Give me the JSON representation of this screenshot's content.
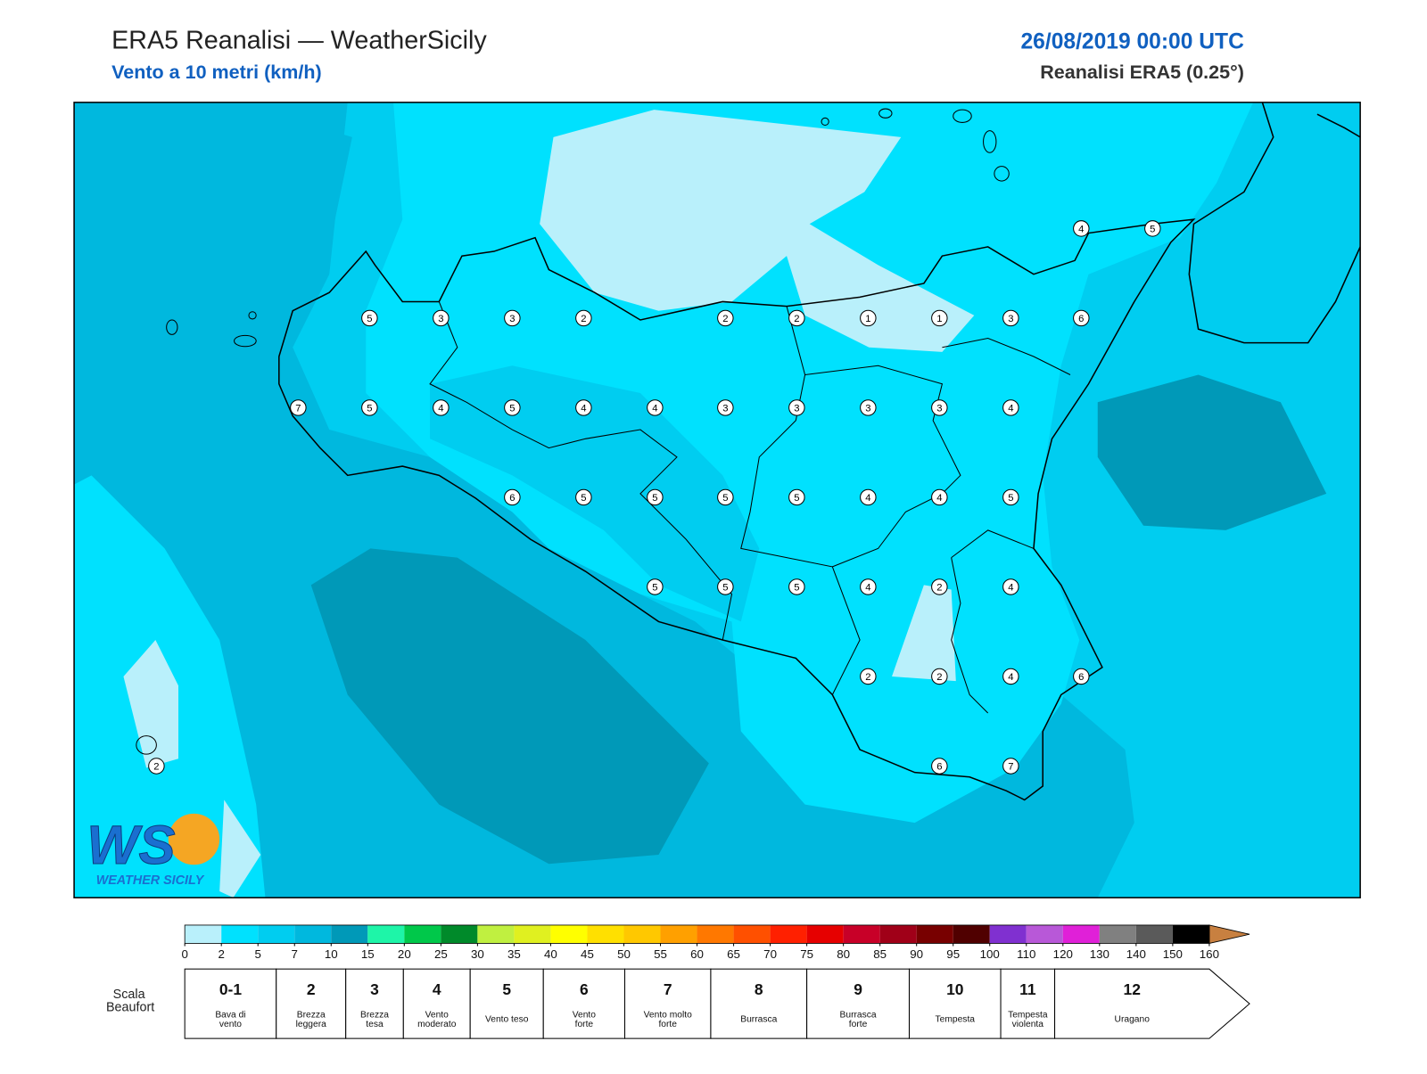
{
  "header": {
    "title": "ERA5 Reanalisi — WeatherSicily",
    "subtitle": "Vento a 10 metri (km/h)",
    "datetime": "26/08/2019 00:00 UTC",
    "source": "Reanalisi ERA5 (0.25°)"
  },
  "map": {
    "stations": [
      4,
      5,
      5,
      3,
      3,
      2,
      2,
      2,
      1,
      1,
      3,
      6,
      7,
      5,
      4,
      5,
      4,
      4,
      3,
      3,
      3,
      3,
      4,
      6,
      5,
      5,
      5,
      5,
      4,
      4,
      5,
      5,
      5,
      5,
      4,
      2,
      4,
      2,
      2,
      4,
      6,
      6,
      7,
      2
    ]
  },
  "logo": {
    "mark": "WS",
    "name": "WEATHER SICILY"
  },
  "colorbar": {
    "ticks": [
      0,
      2,
      5,
      7,
      10,
      15,
      20,
      25,
      30,
      35,
      40,
      45,
      50,
      55,
      60,
      65,
      70,
      75,
      80,
      85,
      90,
      95,
      100,
      110,
      120,
      130,
      140,
      150,
      160
    ],
    "colors": [
      "#b9f0fb",
      "#00e1fe",
      "#00cdf0",
      "#00b8de",
      "#0099b8",
      "#1ef5a8",
      "#00c84a",
      "#008a2a",
      "#c0f040",
      "#e0f020",
      "#ffff00",
      "#ffe000",
      "#ffc800",
      "#ffa000",
      "#ff7800",
      "#ff5000",
      "#ff2000",
      "#e60000",
      "#c80028",
      "#a00018",
      "#780000",
      "#500000",
      "#8030d0",
      "#b858d8",
      "#e020d8",
      "#808080",
      "#5a5a5a",
      "#000000",
      "#804028",
      "#c88040"
    ]
  },
  "beaufort": {
    "label": "Scala Beaufort",
    "levels": [
      {
        "force": "0-1",
        "name": "Bava di vento"
      },
      {
        "force": "2",
        "name": "Brezza leggera"
      },
      {
        "force": "3",
        "name": "Brezza tesa"
      },
      {
        "force": "4",
        "name": "Vento moderato"
      },
      {
        "force": "5",
        "name": "Vento teso"
      },
      {
        "force": "6",
        "name": "Vento forte"
      },
      {
        "force": "7",
        "name": "Vento molto forte"
      },
      {
        "force": "8",
        "name": "Burrasca"
      },
      {
        "force": "9",
        "name": "Burrasca forte"
      },
      {
        "force": "10",
        "name": "Tempesta"
      },
      {
        "force": "11",
        "name": "Tempesta violenta"
      },
      {
        "force": "12",
        "name": "Uragano"
      }
    ]
  }
}
